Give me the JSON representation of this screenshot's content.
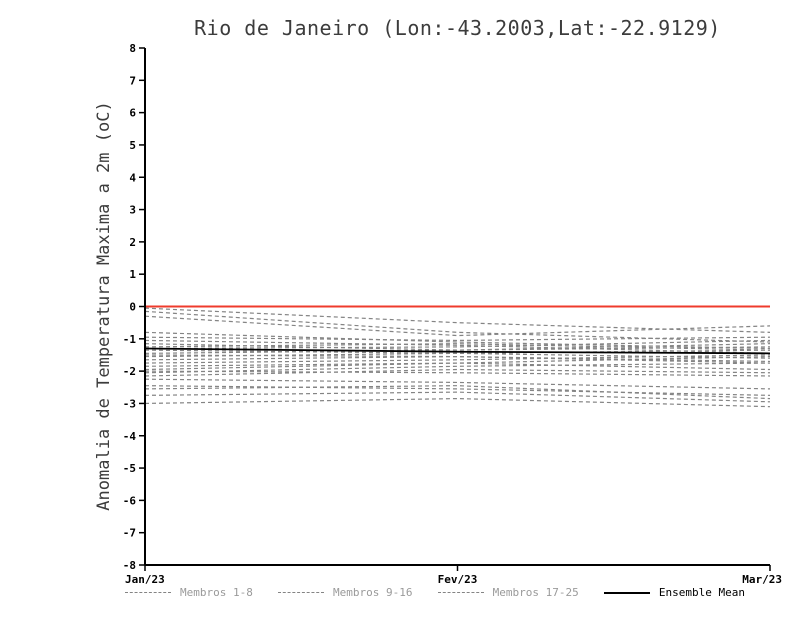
{
  "chart_data": {
    "type": "line",
    "title": "Rio de Janeiro (Lon:-43.2003,Lat:-22.9129)",
    "ylabel": "Anomalia de Temperatura Maxima a 2m (oC)",
    "x_tick_labels": [
      "Jan/23",
      "Fev/23",
      "Mar/23"
    ],
    "ylim": [
      -8,
      8
    ],
    "ytick_step": 1,
    "grid": false,
    "legend_position": "bottom",
    "zero_line": {
      "value": 0,
      "color": "#ef3b2c"
    },
    "member_color": "#848484",
    "mean_color": "#000000",
    "groups": [
      {
        "name": "Membros 1-8",
        "members": [
          [
            -0.05,
            -0.5,
            -0.8
          ],
          [
            -0.15,
            -0.8,
            -1.1
          ],
          [
            -0.3,
            -0.9,
            -0.6
          ],
          [
            -0.8,
            -1.1,
            -1.3
          ],
          [
            -0.95,
            -1.05,
            -0.95
          ],
          [
            -1.05,
            -1.2,
            -1.45
          ],
          [
            -1.15,
            -1.35,
            -1.15
          ],
          [
            -1.25,
            -1.15,
            -1.35
          ]
        ]
      },
      {
        "name": "Membros 9-16",
        "members": [
          [
            -1.3,
            -1.25,
            -1.05
          ],
          [
            -1.35,
            -1.45,
            -1.6
          ],
          [
            -1.45,
            -1.35,
            -1.25
          ],
          [
            -1.5,
            -1.55,
            -1.7
          ],
          [
            -1.55,
            -1.45,
            -1.35
          ],
          [
            -1.65,
            -1.55,
            -1.75
          ],
          [
            -1.75,
            -1.65,
            -1.5
          ],
          [
            -1.85,
            -1.75,
            -1.95
          ]
        ]
      },
      {
        "name": "Membros 17-25",
        "members": [
          [
            -1.95,
            -1.75,
            -1.55
          ],
          [
            -2.0,
            -2.05,
            -2.15
          ],
          [
            -2.05,
            -1.85,
            -1.75
          ],
          [
            -2.15,
            -1.95,
            -2.05
          ],
          [
            -2.25,
            -2.35,
            -2.55
          ],
          [
            -2.45,
            -2.55,
            -2.75
          ],
          [
            -2.55,
            -2.45,
            -2.85
          ],
          [
            -2.75,
            -2.65,
            -2.95
          ],
          [
            -3.0,
            -2.85,
            -3.1
          ]
        ]
      }
    ],
    "ensemble_mean": [
      -1.3,
      -1.4,
      -1.45
    ],
    "legend": [
      {
        "label": "Membros 1-8",
        "line": "dashed",
        "color": "#848484",
        "text_color": "#9a9a9a"
      },
      {
        "label": "Membros 9-16",
        "line": "dashed",
        "color": "#848484",
        "text_color": "#9a9a9a"
      },
      {
        "label": "Membros 17-25",
        "line": "dashed",
        "color": "#848484",
        "text_color": "#9a9a9a"
      },
      {
        "label": "Ensemble Mean",
        "line": "solid",
        "color": "#000000",
        "text_color": "#000000"
      }
    ]
  }
}
